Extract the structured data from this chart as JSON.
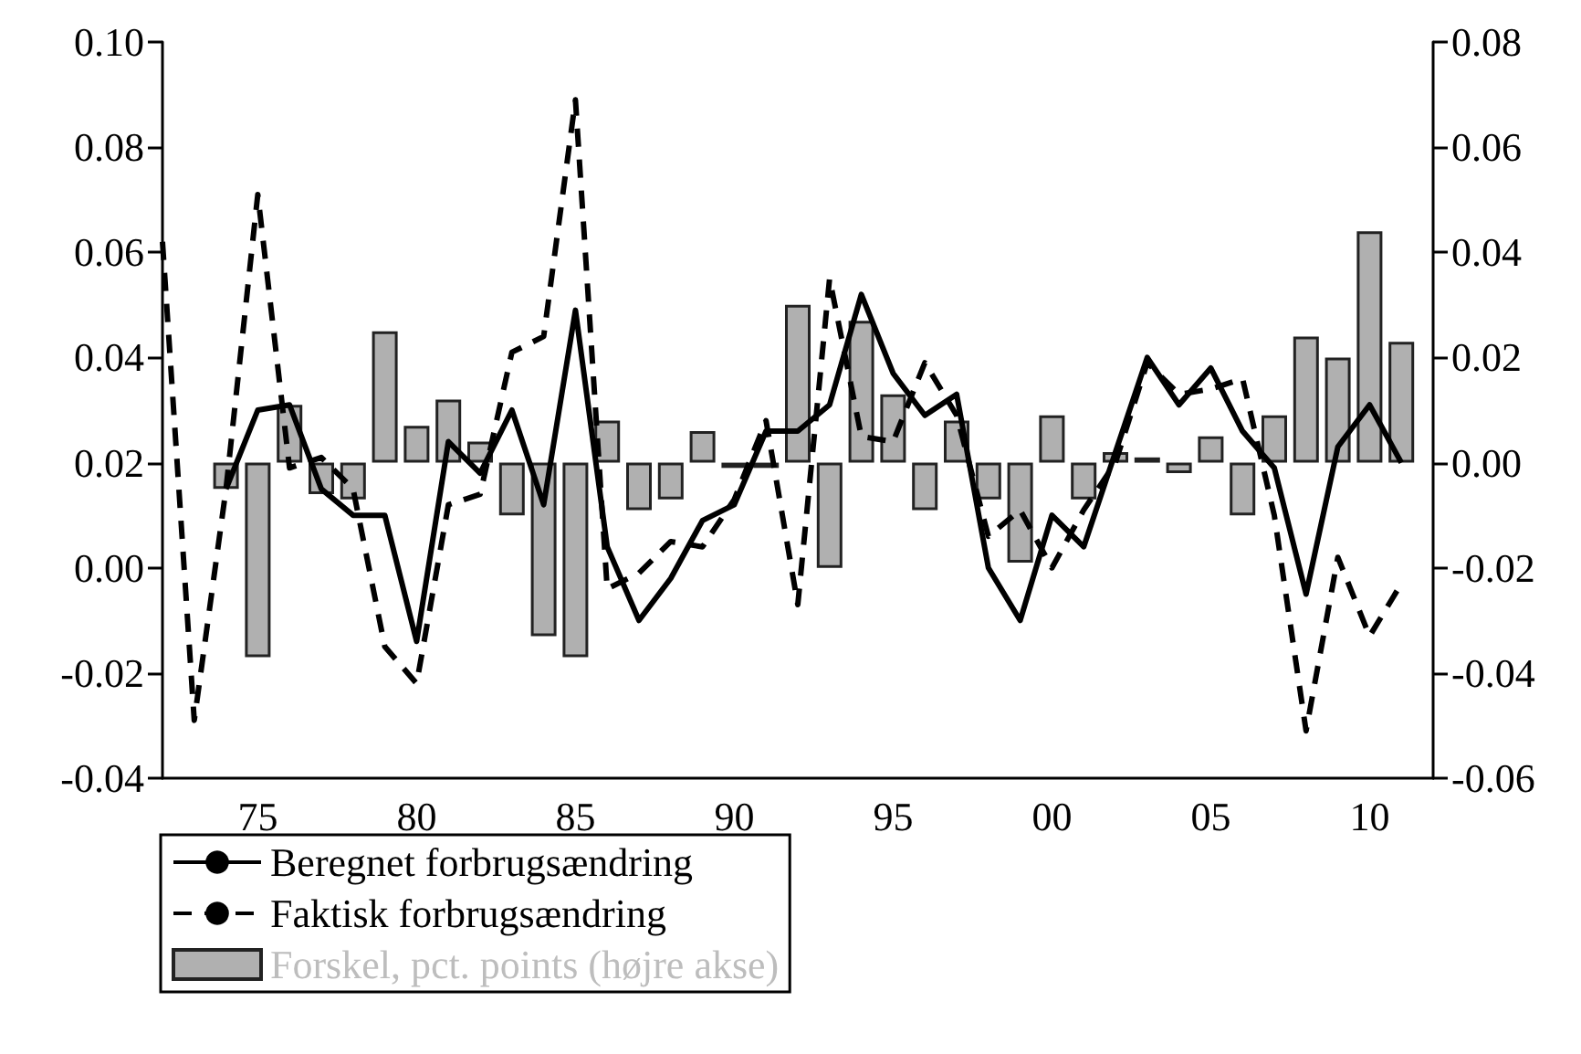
{
  "chart_data": {
    "type": "line",
    "x": [
      1972,
      1973,
      1974,
      1975,
      1976,
      1977,
      1978,
      1979,
      1980,
      1981,
      1982,
      1983,
      1984,
      1985,
      1986,
      1987,
      1988,
      1989,
      1990,
      1991,
      1992,
      1993,
      1994,
      1995,
      1996,
      1997,
      1998,
      1999,
      2000,
      2001,
      2002,
      2003,
      2004,
      2005,
      2006,
      2007,
      2008,
      2009,
      2010,
      2011
    ],
    "series": [
      {
        "name": "Beregnet forbrugsændring",
        "color": "#000000",
        "line_style": "solid",
        "values": [
          null,
          null,
          0.015,
          0.03,
          0.031,
          0.015,
          0.01,
          0.01,
          -0.014,
          0.024,
          0.018,
          0.03,
          0.012,
          0.049,
          0.004,
          -0.01,
          -0.002,
          0.009,
          0.012,
          0.026,
          0.026,
          0.031,
          0.052,
          0.037,
          0.029,
          0.033,
          0.0,
          -0.01,
          0.01,
          0.004,
          0.022,
          0.04,
          0.031,
          0.038,
          0.026,
          0.019,
          -0.005,
          0.023,
          0.031,
          0.02
        ]
      },
      {
        "name": "Faktisk forbrugsændring",
        "color": "#000000",
        "line_style": "dashed",
        "values": [
          0.062,
          -0.029,
          0.015,
          0.071,
          0.019,
          0.021,
          0.015,
          -0.015,
          -0.022,
          0.012,
          0.014,
          0.041,
          0.044,
          0.089,
          -0.004,
          -0.001,
          0.005,
          0.004,
          0.013,
          0.028,
          -0.007,
          0.055,
          0.025,
          0.024,
          0.039,
          0.029,
          0.006,
          0.011,
          0.0,
          0.011,
          0.02,
          0.039,
          0.033,
          0.034,
          0.036,
          0.01,
          -0.031,
          0.002,
          -0.013,
          -0.003
        ]
      },
      {
        "name": "Forskel, pct. points (højre akse)",
        "type": "bar",
        "axis": "y2",
        "color": "#b0b0b0",
        "values": [
          null,
          null,
          -0.005,
          -0.037,
          0.011,
          -0.006,
          -0.007,
          0.025,
          0.007,
          0.012,
          0.004,
          -0.01,
          -0.033,
          -0.037,
          0.008,
          -0.009,
          -0.007,
          0.006,
          -0.001,
          -0.001,
          0.03,
          -0.02,
          0.027,
          0.013,
          -0.009,
          0.008,
          -0.007,
          -0.019,
          0.009,
          -0.007,
          0.002,
          0.001,
          -0.002,
          0.005,
          -0.01,
          0.009,
          0.024,
          0.02,
          0.044,
          0.023
        ]
      }
    ],
    "xlim": [
      1972,
      2012
    ],
    "xticks": [
      {
        "value": 1975,
        "label": "75"
      },
      {
        "value": 1980,
        "label": "80"
      },
      {
        "value": 1985,
        "label": "85"
      },
      {
        "value": 1990,
        "label": "90"
      },
      {
        "value": 1995,
        "label": "95"
      },
      {
        "value": 2000,
        "label": "00"
      },
      {
        "value": 2005,
        "label": "05"
      },
      {
        "value": 2010,
        "label": "10"
      }
    ],
    "ylim": [
      -0.04,
      0.1
    ],
    "yticks": [
      {
        "value": -0.04,
        "label": "-0.04"
      },
      {
        "value": -0.02,
        "label": "-0.02"
      },
      {
        "value": 0,
        "label": "0.00"
      },
      {
        "value": 0.02,
        "label": "0.02"
      },
      {
        "value": 0.04,
        "label": "0.04"
      },
      {
        "value": 0.06,
        "label": "0.06"
      },
      {
        "value": 0.08,
        "label": "0.08"
      },
      {
        "value": 0.1,
        "label": "0.10"
      }
    ],
    "y2lim": [
      -0.06,
      0.08
    ],
    "y2ticks": [
      {
        "value": -0.06,
        "label": "-0.06"
      },
      {
        "value": -0.04,
        "label": "-0.04"
      },
      {
        "value": -0.02,
        "label": "-0.02"
      },
      {
        "value": 0,
        "label": "0.00"
      },
      {
        "value": 0.02,
        "label": "0.02"
      },
      {
        "value": 0.04,
        "label": "0.04"
      },
      {
        "value": 0.06,
        "label": "0.06"
      },
      {
        "value": 0.08,
        "label": "0.08"
      }
    ],
    "legend": "bottom",
    "grid": false,
    "marker": "none"
  }
}
